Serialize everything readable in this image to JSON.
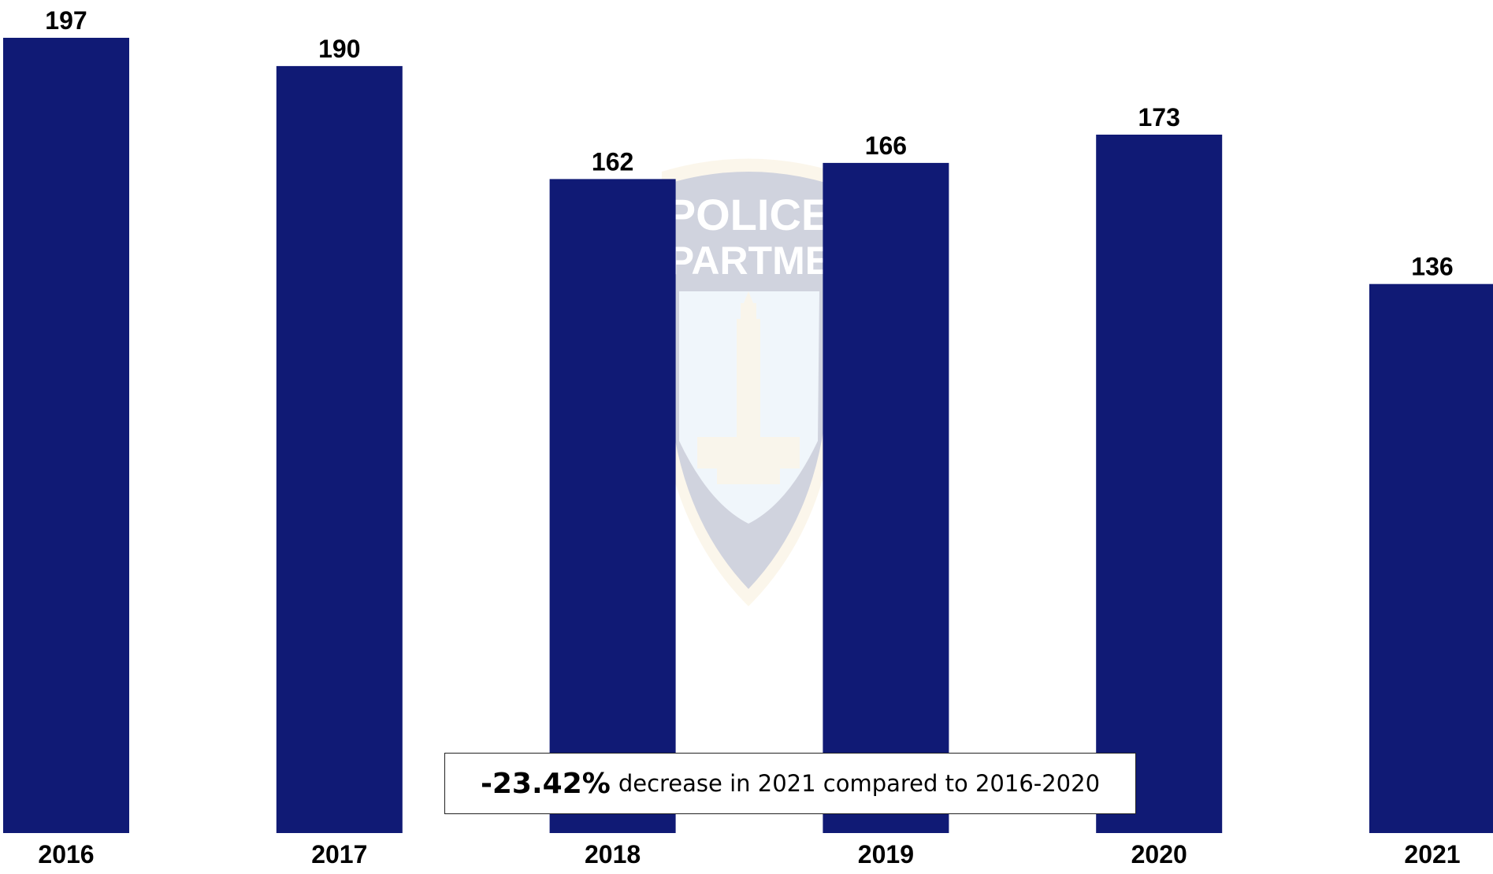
{
  "chart_data": {
    "type": "bar",
    "categories": [
      "2016",
      "2017",
      "2018",
      "2019",
      "2020",
      "2021"
    ],
    "values": [
      197,
      190,
      162,
      166,
      173,
      136
    ],
    "title": "",
    "xlabel": "",
    "ylabel": "",
    "ylim": [
      0,
      197
    ],
    "grid": false,
    "legend": "none",
    "bar_color": "#101A75",
    "data_labels": true
  },
  "callout": {
    "value": "-23.42%",
    "text": "decrease in 2021 compared to 2016-2020"
  },
  "watermark": {
    "icon": "police-badge-icon",
    "text_line1": "POLICE",
    "text_line2": "DEPARTMENT",
    "colors": {
      "gold": "#F0D9A6",
      "navy": "#2E3A6B",
      "sky": "#BFD7EE",
      "building": "#E8D3A8"
    }
  }
}
